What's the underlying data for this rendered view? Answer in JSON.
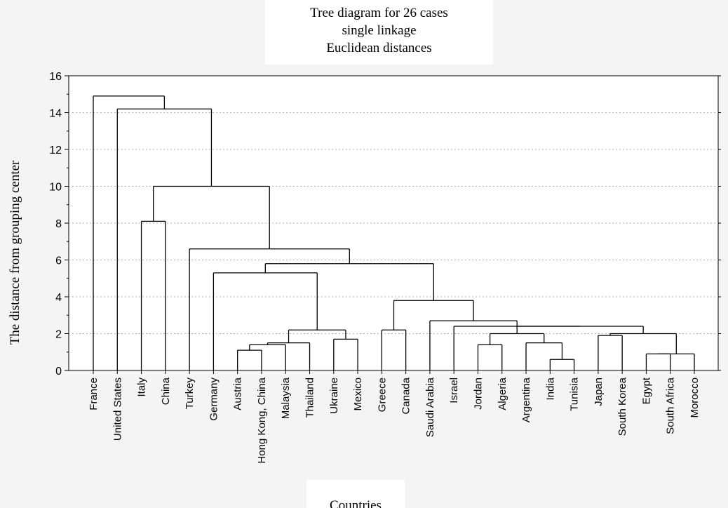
{
  "chart_data": {
    "type": "dendrogram",
    "title": "Tree diagram for 26 cases",
    "subtitle_lines": [
      "single linkage",
      "Euclidean distances"
    ],
    "xlabel": "Countries",
    "ylabel": "The distance from grouping center",
    "ylim": [
      0,
      16
    ],
    "yticks": [
      0,
      2,
      4,
      6,
      8,
      10,
      12,
      14,
      16
    ],
    "grid": true,
    "leaves": [
      "France",
      "United States",
      "Italy",
      "China",
      "Turkey",
      "Germany",
      "Austria",
      "Hong Kong, China",
      "Malaysia",
      "Thailand",
      "Ukraine",
      "Mexico",
      "Greece",
      "Canada",
      "Saudi Arabia",
      "Israel",
      "Jordan",
      "Algeria",
      "Argentina",
      "India",
      "Tunisia",
      "Japan",
      "South Korea",
      "Egypt",
      "South Africa",
      "Morocco"
    ],
    "merges": [
      {
        "left": "India",
        "right": "Tunisia",
        "height": 0.6
      },
      {
        "left": "Egypt",
        "right": "South Africa",
        "height": 0.9
      },
      {
        "left": "Egypt + South Africa",
        "right": "Morocco",
        "height": 0.9
      },
      {
        "left": "Austria",
        "right": "Hong Kong, China",
        "height": 1.1
      },
      {
        "left": "Austria + Hong Kong, China",
        "right": "Malaysia",
        "height": 1.4
      },
      {
        "left": "Jordan",
        "right": "Algeria",
        "height": 1.4
      },
      {
        "left": "Argentina",
        "right": "India + Tunisia",
        "height": 1.5
      },
      {
        "left": "Austria + Hong Kong, China + Malaysia",
        "right": "Thailand",
        "height": 1.5
      },
      {
        "left": "Ukraine",
        "right": "Mexico",
        "height": 1.7
      },
      {
        "left": "Japan",
        "right": "South Korea",
        "height": 1.9
      },
      {
        "left": "Jordan + Algeria",
        "right": "Argentina + India + Tunisia",
        "height": 2.0
      },
      {
        "left": "Japan + South Korea",
        "right": "Egypt + South Africa + Morocco",
        "height": 2.0
      },
      {
        "left": "Austria ... Thailand",
        "right": "Ukraine + Mexico",
        "height": 2.2
      },
      {
        "left": "Greece",
        "right": "Canada",
        "height": 2.2
      },
      {
        "left": "Jordan ... Tunisia",
        "right": "Japan ... Morocco",
        "height": 2.4
      },
      {
        "left": "Israel",
        "right": "Jordan ... Morocco",
        "height": 2.4
      },
      {
        "left": "Saudi Arabia",
        "right": "Israel ... Morocco",
        "height": 2.7
      },
      {
        "left": "Greece + Canada",
        "right": "Saudi Arabia ... Morocco",
        "height": 3.8
      },
      {
        "left": "Germany",
        "right": "Austria ... Mexico",
        "height": 5.3
      },
      {
        "left": "Germany ... Mexico",
        "right": "Greece ... Morocco",
        "height": 5.8
      },
      {
        "left": "Turkey",
        "right": "Germany ... Morocco",
        "height": 6.6
      },
      {
        "left": "Italy",
        "right": "China",
        "height": 8.1
      },
      {
        "left": "Italy + China",
        "right": "Turkey ... Morocco",
        "height": 10.0
      },
      {
        "left": "United States",
        "right": "Italy ... Morocco",
        "height": 14.2
      },
      {
        "left": "France",
        "right": "United States ... Morocco",
        "height": 14.9
      }
    ],
    "colors": {
      "line": "#000000",
      "grid": "#b0b0b0",
      "plot_bg": "#ffffff",
      "outer_bg": "#f4f4f4"
    }
  }
}
